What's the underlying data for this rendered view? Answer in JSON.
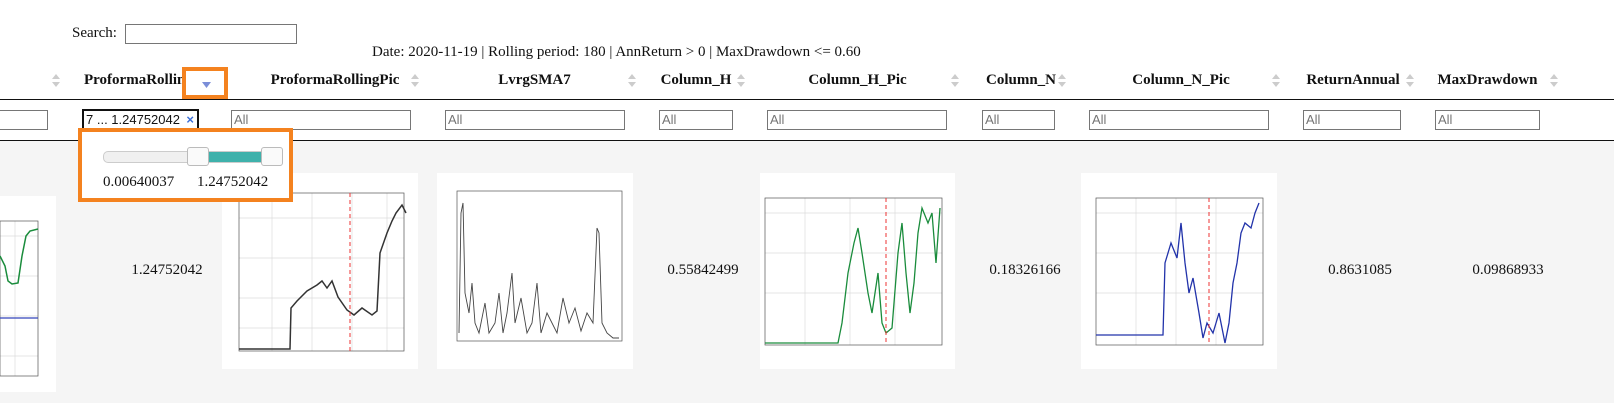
{
  "search": {
    "label": "Search:"
  },
  "info": "Date: 2020-11-19 | Rolling period: 180 | AnnReturn > 0 | MaxDrawdown <= 0.60",
  "table": {
    "headers": [
      "ProformaRolling",
      "ProformaRollingPic",
      "LvrgSMA7",
      "Column_H",
      "Column_H_Pic",
      "Column_N",
      "Column_N_Pic",
      "ReturnAnnual",
      "MaxDrawdown"
    ],
    "rows": [
      [
        "1.24752042",
        "0.55842499",
        "0.18326166",
        "0.8631085",
        "0.09868933"
      ]
    ]
  },
  "filters": {
    "placeholder": "All",
    "active": "7 ... 1.24752042"
  },
  "slider": {
    "min": "0.00640037",
    "max": "1.24752042"
  }
}
